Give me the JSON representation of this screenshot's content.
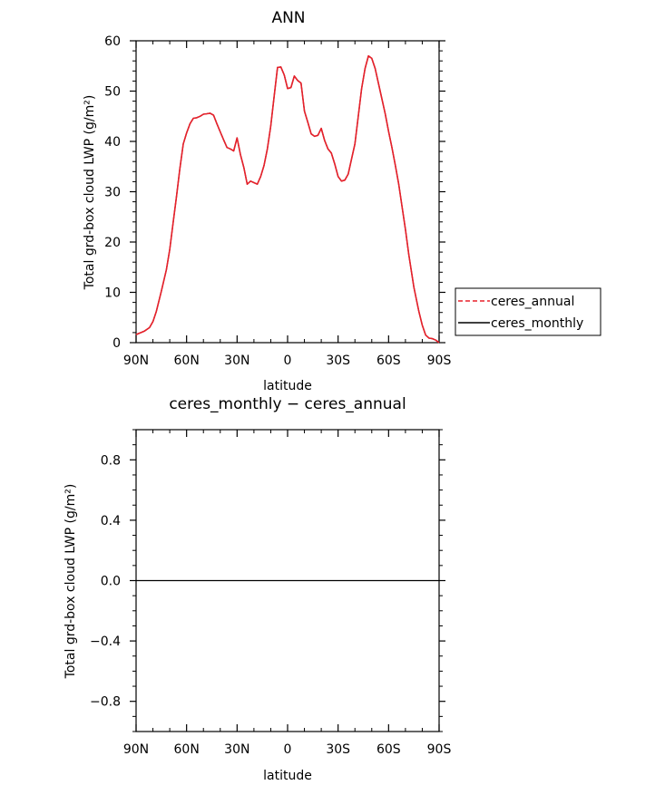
{
  "chart_data": [
    {
      "type": "line",
      "title": "ANN",
      "xlabel": "latitude",
      "ylabel": "Total grd-box cloud LWP (g/m²)",
      "xlim": [
        90,
        -90
      ],
      "ylim": [
        0,
        60
      ],
      "x_ticks": [
        90,
        60,
        30,
        0,
        -30,
        -60,
        -90
      ],
      "x_tick_labels": [
        "90N",
        "60N",
        "30N",
        "0",
        "30S",
        "60S",
        "90S"
      ],
      "y_ticks": [
        0,
        10,
        20,
        30,
        40,
        50,
        60
      ],
      "y_tick_labels": [
        "0",
        "10",
        "20",
        "30",
        "40",
        "50",
        "60"
      ],
      "grid": false,
      "legend_position": "right",
      "legend": [
        {
          "label": "ceres_annual",
          "color": "#e8202a",
          "dash": "dashed"
        },
        {
          "label": "ceres_monthly",
          "color": "#000000",
          "dash": "solid"
        }
      ],
      "series": [
        {
          "name": "ceres_annual",
          "color": "#e8202a",
          "x": [
            90,
            85,
            82,
            80,
            78,
            75,
            72,
            70,
            68,
            66,
            64,
            62,
            60,
            58,
            56,
            54,
            52,
            50,
            48,
            46,
            44,
            42,
            40,
            38,
            36,
            34,
            32,
            30,
            28,
            26,
            24,
            22,
            20,
            18,
            16,
            14,
            12,
            10,
            8,
            6,
            4,
            2,
            0,
            -2,
            -4,
            -6,
            -8,
            -10,
            -12,
            -14,
            -16,
            -18,
            -20,
            -22,
            -24,
            -26,
            -28,
            -30,
            -32,
            -34,
            -36,
            -38,
            -40,
            -42,
            -44,
            -46,
            -48,
            -50,
            -52,
            -54,
            -56,
            -58,
            -60,
            -62,
            -64,
            -66,
            -68,
            -70,
            -72,
            -75,
            -78,
            -80,
            -82,
            -84,
            -86,
            -88,
            -90
          ],
          "y": [
            1.6,
            2.3,
            3.0,
            4.2,
            6.2,
            10.2,
            14.5,
            18.5,
            23.8,
            29.0,
            34.5,
            39.5,
            41.7,
            43.5,
            44.6,
            44.7,
            45.0,
            45.4,
            45.5,
            45.6,
            45.2,
            43.5,
            41.9,
            40.3,
            38.8,
            38.5,
            38.1,
            40.7,
            37.4,
            34.8,
            31.5,
            32.1,
            31.8,
            31.5,
            33.0,
            35.2,
            38.5,
            43.0,
            49.0,
            54.7,
            54.8,
            53.2,
            50.5,
            50.7,
            53.0,
            52.1,
            51.6,
            46.0,
            43.8,
            41.5,
            41.0,
            41.2,
            42.6,
            40.2,
            38.5,
            37.7,
            35.5,
            33.0,
            32.1,
            32.3,
            33.5,
            36.5,
            39.5,
            45.0,
            50.5,
            54.5,
            57.0,
            56.5,
            54.5,
            51.5,
            48.5,
            45.5,
            42.0,
            38.8,
            35.2,
            31.5,
            27.0,
            22.5,
            17.5,
            11.0,
            6.2,
            3.5,
            1.5,
            0.9,
            0.8,
            0.5,
            0.0
          ]
        },
        {
          "name": "ceres_monthly",
          "color": "#000000",
          "x": [
            90,
            85,
            82,
            80,
            78,
            75,
            72,
            70,
            68,
            66,
            64,
            62,
            60,
            58,
            56,
            54,
            52,
            50,
            48,
            46,
            44,
            42,
            40,
            38,
            36,
            34,
            32,
            30,
            28,
            26,
            24,
            22,
            20,
            18,
            16,
            14,
            12,
            10,
            8,
            6,
            4,
            2,
            0,
            -2,
            -4,
            -6,
            -8,
            -10,
            -12,
            -14,
            -16,
            -18,
            -20,
            -22,
            -24,
            -26,
            -28,
            -30,
            -32,
            -34,
            -36,
            -38,
            -40,
            -42,
            -44,
            -46,
            -48,
            -50,
            -52,
            -54,
            -56,
            -58,
            -60,
            -62,
            -64,
            -66,
            -68,
            -70,
            -72,
            -75,
            -78,
            -80,
            -82,
            -84,
            -86,
            -88,
            -90
          ],
          "y": [
            1.6,
            2.3,
            3.0,
            4.2,
            6.2,
            10.2,
            14.5,
            18.5,
            23.8,
            29.0,
            34.5,
            39.5,
            41.7,
            43.5,
            44.6,
            44.7,
            45.0,
            45.4,
            45.5,
            45.6,
            45.2,
            43.5,
            41.9,
            40.3,
            38.8,
            38.5,
            38.1,
            40.7,
            37.4,
            34.8,
            31.5,
            32.1,
            31.8,
            31.5,
            33.0,
            35.2,
            38.5,
            43.0,
            49.0,
            54.7,
            54.8,
            53.2,
            50.5,
            50.7,
            53.0,
            52.1,
            51.6,
            46.0,
            43.8,
            41.5,
            41.0,
            41.2,
            42.6,
            40.2,
            38.5,
            37.7,
            35.5,
            33.0,
            32.1,
            32.3,
            33.5,
            36.5,
            39.5,
            45.0,
            50.5,
            54.5,
            57.0,
            56.5,
            54.5,
            51.5,
            48.5,
            45.5,
            42.0,
            38.8,
            35.2,
            31.5,
            27.0,
            22.5,
            17.5,
            11.0,
            6.2,
            3.5,
            1.5,
            0.9,
            0.8,
            0.5,
            0.0
          ]
        }
      ]
    },
    {
      "type": "line",
      "title": "ceres_monthly − ceres_annual",
      "xlabel": "latitude",
      "ylabel": "Total grd-box cloud LWP (g/m²)",
      "xlim": [
        90,
        -90
      ],
      "ylim": [
        -1,
        1
      ],
      "x_ticks": [
        90,
        60,
        30,
        0,
        -30,
        -60,
        -90
      ],
      "x_tick_labels": [
        "90N",
        "60N",
        "30N",
        "0",
        "30S",
        "60S",
        "90S"
      ],
      "y_ticks": [
        -0.8,
        -0.4,
        0.0,
        0.4,
        0.8
      ],
      "y_tick_labels": [
        "−0.8",
        "−0.4",
        "0.0",
        "0.4",
        "0.8"
      ],
      "grid": false,
      "series": [
        {
          "color": "#000000",
          "x": [
            90,
            -90
          ],
          "y": [
            0,
            0
          ]
        }
      ]
    }
  ]
}
